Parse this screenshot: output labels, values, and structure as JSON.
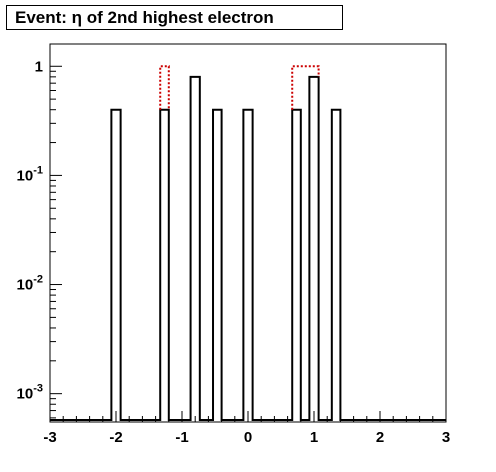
{
  "chart_data": {
    "type": "bar",
    "title": "Event: η of 2nd highest electron",
    "xlabel": "",
    "ylabel": "",
    "xlim": [
      -3,
      3
    ],
    "ylim": [
      0.00055,
      1.6
    ],
    "yscale": "log",
    "grid": false,
    "legend": "none",
    "x_ticks": [
      "-3",
      "-2",
      "-1",
      "0",
      "1",
      "2",
      "3"
    ],
    "y_ticks": [
      {
        "base": "1",
        "exp": ""
      },
      {
        "base": "10",
        "exp": "-1"
      },
      {
        "base": "10",
        "exp": "-2"
      },
      {
        "base": "10",
        "exp": "-3"
      }
    ],
    "series": [
      {
        "color": "#000000",
        "style": "solid",
        "bins": [
          {
            "x0": -2.07,
            "x1": -1.93,
            "y": 0.4
          },
          {
            "x0": -1.33,
            "x1": -1.2,
            "y": 0.4
          },
          {
            "x0": -0.87,
            "x1": -0.73,
            "y": 0.8
          },
          {
            "x0": -0.53,
            "x1": -0.4,
            "y": 0.4
          },
          {
            "x0": -0.07,
            "x1": 0.07,
            "y": 0.4
          },
          {
            "x0": 0.67,
            "x1": 0.8,
            "y": 0.4
          },
          {
            "x0": 0.93,
            "x1": 1.07,
            "y": 0.8
          },
          {
            "x0": 1.27,
            "x1": 1.4,
            "y": 0.4
          }
        ]
      },
      {
        "color": "#cc0000",
        "style": "dotted",
        "bins": [
          {
            "x0": -1.33,
            "x1": -1.2,
            "y": 1.0
          },
          {
            "x0": 0.67,
            "x1": 1.07,
            "y": 1.0
          }
        ]
      }
    ]
  }
}
